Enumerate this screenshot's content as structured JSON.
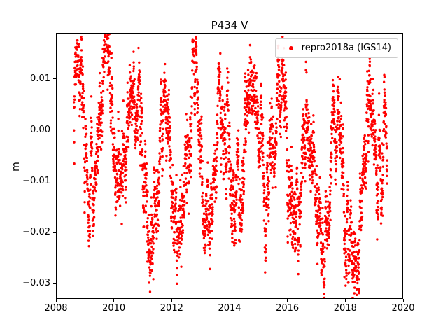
{
  "chart_data": {
    "type": "scatter",
    "title": "P434 V",
    "xlabel": "",
    "ylabel": "m",
    "xlim": [
      2008,
      2020
    ],
    "ylim": [
      -0.033,
      0.019
    ],
    "grid": false,
    "x_ticks": {
      "values": [
        2008,
        2010,
        2012,
        2014,
        2016,
        2018,
        2020
      ],
      "labels": [
        "2008",
        "2010",
        "2012",
        "2014",
        "2016",
        "2018",
        "2020"
      ]
    },
    "y_ticks": {
      "values": [
        0.01,
        0.0,
        -0.01,
        -0.02,
        -0.03
      ],
      "labels": [
        "0.01",
        "0.00",
        "−0.01",
        "−0.02",
        "−0.03"
      ]
    },
    "legend": {
      "label": "repro2018a (IGS14)",
      "position": "upper-right"
    },
    "series": [
      {
        "name": "repro2018a (IGS14)",
        "color": "#ff0000",
        "marker": "dot",
        "marker_radius_px": 1.7,
        "x_start": 2008.62,
        "x_end": 2019.45,
        "points_per_year": 330,
        "noise": {
          "white_sigma": 0.0022,
          "ar_coeff": 0.94,
          "ar_innovation": 0.0007,
          "seed": 42
        },
        "seasonal_mean_nodes": [
          {
            "t": 2008.62,
            "v": 0.008
          },
          {
            "t": 2008.72,
            "v": 0.01
          },
          {
            "t": 2009.25,
            "v": -0.0125
          },
          {
            "t": 2009.72,
            "v": 0.0085
          },
          {
            "t": 2010.25,
            "v": -0.012
          },
          {
            "t": 2010.75,
            "v": 0.008
          },
          {
            "t": 2011.28,
            "v": -0.02
          },
          {
            "t": 2011.75,
            "v": 0.005
          },
          {
            "t": 2012.22,
            "v": -0.0235
          },
          {
            "t": 2012.7,
            "v": 0.0075
          },
          {
            "t": 2013.3,
            "v": -0.02
          },
          {
            "t": 2013.75,
            "v": 0.0045
          },
          {
            "t": 2014.28,
            "v": -0.016
          },
          {
            "t": 2014.75,
            "v": 0.0085
          },
          {
            "t": 2015.3,
            "v": -0.017
          },
          {
            "t": 2015.7,
            "v": 0.0075
          },
          {
            "t": 2016.3,
            "v": -0.019
          },
          {
            "t": 2016.7,
            "v": 0.0025
          },
          {
            "t": 2017.3,
            "v": -0.026
          },
          {
            "t": 2017.72,
            "v": 0.0
          },
          {
            "t": 2018.3,
            "v": -0.025
          },
          {
            "t": 2018.75,
            "v": 0.001
          },
          {
            "t": 2019.25,
            "v": -0.011
          },
          {
            "t": 2019.45,
            "v": -0.007
          }
        ]
      }
    ]
  }
}
